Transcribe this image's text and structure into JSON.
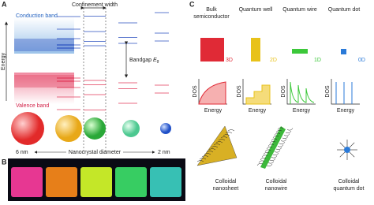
{
  "panel_a": {
    "letter": "A",
    "confinement_width": "Confinement width",
    "conduction_band": "Conduction band",
    "valence_band": "Valence band",
    "energy_axis": "Energy",
    "bandgap": {
      "text": "Bandgap",
      "symbol": "E",
      "subscript": "g"
    },
    "size_left": "6 nm",
    "size_axis": "Nanocrystal diameter",
    "size_right": "2 nm"
  },
  "panel_b": {
    "letter": "B"
  },
  "panel_c": {
    "letter": "C",
    "columns": [
      {
        "title": [
          "Bulk",
          "semiconductor"
        ],
        "dim": "3D",
        "dos_label": "DOS",
        "energy_label": "Energy"
      },
      {
        "title": [
          "Quantum well"
        ],
        "dim": "2D",
        "dos_label": "DOS",
        "energy_label": "Energy"
      },
      {
        "title": [
          "Quantum wire"
        ],
        "dim": "1D",
        "dos_label": "DOS",
        "energy_label": "Energy"
      },
      {
        "title": [
          "Quantum dot"
        ],
        "dim": "0D",
        "dos_label": "DOS",
        "energy_label": "Energy"
      }
    ],
    "captions": [
      [
        "Colloidal",
        "nanosheet"
      ],
      [
        "Colloidal",
        "nanowire"
      ],
      [
        "Colloidal",
        "quantum dot"
      ]
    ]
  }
}
